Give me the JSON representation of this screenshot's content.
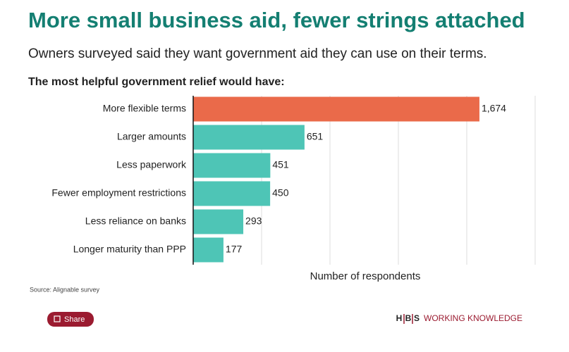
{
  "chart_data": {
    "type": "barh",
    "title": "More small business aid, fewer strings attached",
    "subtitle": "Owners surveyed said they want government aid they can use on their terms.",
    "heading": "The most helpful government relief would have:",
    "categories": [
      "More flexible terms",
      "Larger amounts",
      "Less paperwork",
      "Fewer employment restrictions",
      "Less reliance on banks",
      "Longer maturity than PPP"
    ],
    "values": [
      1674,
      651,
      451,
      450,
      293,
      177
    ],
    "value_labels": [
      "1,674",
      "651",
      "451",
      "450",
      "293",
      "177"
    ],
    "colors": [
      "#ea6a4a",
      "#4ec5b6",
      "#4ec5b6",
      "#4ec5b6",
      "#4ec5b6",
      "#4ec5b6"
    ],
    "xlim": [
      0,
      2000
    ],
    "xticks": [
      400,
      800,
      1200,
      1600,
      2000
    ],
    "grid": true,
    "xlabel": "Number of respondents",
    "source": "Source: Alignable survey"
  },
  "share_button": "Share",
  "logo": {
    "letters": [
      "H",
      "B",
      "S"
    ],
    "text": "WORKING KNOWLEDGE"
  }
}
